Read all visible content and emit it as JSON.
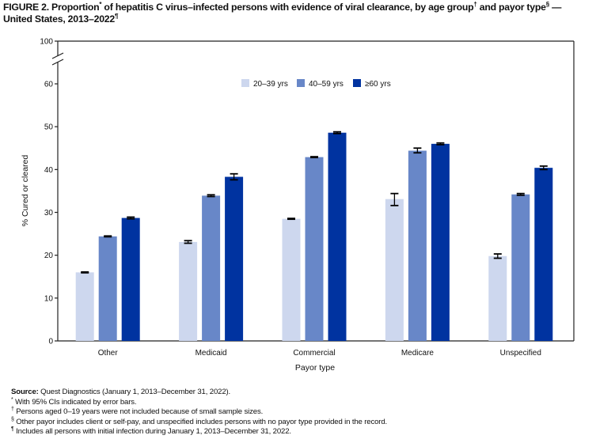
{
  "title": {
    "text_1": "FIGURE 2. Proportion",
    "sup_1": "*",
    "text_2": " of hepatitis C virus–infected persons with evidence of viral clearance, by age group",
    "sup_2": "†",
    "text_3": " and payor type",
    "sup_3": "§",
    "text_4": " — United States, 2013–2022",
    "sup_4": "¶"
  },
  "chart_data": {
    "type": "bar",
    "title": "Proportion of hepatitis C virus–infected persons with evidence of viral clearance, by age group and payor type — United States, 2013–2022",
    "xlabel": "Payor type",
    "ylabel": "% Cured or cleared",
    "ylim": [
      0,
      100
    ],
    "axis_break": [
      60,
      100
    ],
    "yticks": [
      0,
      10,
      20,
      30,
      40,
      50,
      60,
      100
    ],
    "grid": false,
    "legend_position": "top-center",
    "categories": [
      "Other",
      "Medicaid",
      "Commercial",
      "Medicare",
      "Unspecified"
    ],
    "series": [
      {
        "name": "20–39 yrs",
        "color": "#cdd7ee",
        "values": [
          16.0,
          23.1,
          28.5,
          33.1,
          19.8
        ],
        "ci_low": [
          15.9,
          22.8,
          28.4,
          31.6,
          19.3
        ],
        "ci_high": [
          16.1,
          23.4,
          28.6,
          34.4,
          20.3
        ]
      },
      {
        "name": "40–59 yrs",
        "color": "#6887c8",
        "values": [
          24.4,
          33.9,
          42.9,
          44.4,
          34.2
        ],
        "ci_low": [
          24.3,
          33.7,
          42.8,
          43.9,
          34.0
        ],
        "ci_high": [
          24.5,
          34.1,
          43.0,
          45.0,
          34.4
        ]
      },
      {
        "name": "≥60 yrs",
        "color": "#0033a0",
        "values": [
          28.7,
          38.3,
          48.6,
          46.0,
          40.4
        ],
        "ci_low": [
          28.5,
          37.6,
          48.4,
          45.8,
          40.0
        ],
        "ci_high": [
          28.9,
          39.0,
          48.8,
          46.2,
          40.8
        ]
      }
    ]
  },
  "notes": {
    "source_label": "Source:",
    "source_text": " Quest Diagnostics (January 1, 2013–December 31, 2022).",
    "n1_mark": "*",
    "n1_text": " With 95% CIs indicated by error bars.",
    "n2_mark": "†",
    "n2_text": " Persons aged 0–19 years were not included because of small sample sizes.",
    "n3_mark": "§",
    "n3_text": " Other payor includes client or self-pay, and unspecified includes persons with no payor type provided in the record.",
    "n4_mark": "¶",
    "n4_text": " Includes all persons with initial infection during January 1, 2013–December 31, 2022."
  }
}
